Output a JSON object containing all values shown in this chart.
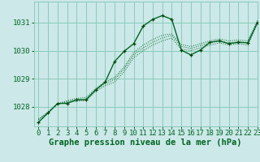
{
  "title": "Graphe pression niveau de la mer (hPa)",
  "background_color": "#cce8e8",
  "plot_bg_color": "#cce8e8",
  "grid_color": "#88ccbb",
  "line_color": "#006622",
  "marker_color": "#004400",
  "xlim": [
    -0.5,
    23
  ],
  "ylim": [
    1027.3,
    1031.75
  ],
  "xticks": [
    0,
    1,
    2,
    3,
    4,
    5,
    6,
    7,
    8,
    9,
    10,
    11,
    12,
    13,
    14,
    15,
    16,
    17,
    18,
    19,
    20,
    21,
    22,
    23
  ],
  "yticks": [
    1028,
    1029,
    1030,
    1031
  ],
  "series_dotted": [
    [
      1027.55,
      1027.8,
      1028.1,
      1028.15,
      1028.2,
      1028.22,
      1028.55,
      1028.75,
      1028.88,
      1029.25,
      1029.75,
      1030.0,
      1030.2,
      1030.35,
      1030.45,
      1030.05,
      1030.0,
      1030.1,
      1030.2,
      1030.28,
      1030.2,
      1030.25,
      1030.2,
      1030.95
    ],
    [
      1027.55,
      1027.8,
      1028.1,
      1028.18,
      1028.25,
      1028.28,
      1028.6,
      1028.82,
      1028.98,
      1029.35,
      1029.85,
      1030.1,
      1030.3,
      1030.45,
      1030.55,
      1030.15,
      1030.08,
      1030.18,
      1030.28,
      1030.35,
      1030.28,
      1030.32,
      1030.28,
      1031.02
    ],
    [
      1027.55,
      1027.8,
      1028.1,
      1028.22,
      1028.3,
      1028.33,
      1028.65,
      1028.88,
      1029.05,
      1029.42,
      1029.93,
      1030.2,
      1030.4,
      1030.55,
      1030.6,
      1030.22,
      1030.15,
      1030.25,
      1030.35,
      1030.42,
      1030.35,
      1030.38,
      1030.35,
      1031.08
    ]
  ],
  "series_main": [
    1027.45,
    1027.78,
    1028.12,
    1028.12,
    1028.25,
    1028.25,
    1028.6,
    1028.88,
    1029.62,
    1029.98,
    1030.25,
    1030.88,
    1031.12,
    1031.25,
    1031.12,
    1030.02,
    1029.85,
    1030.02,
    1030.3,
    1030.35,
    1030.25,
    1030.3,
    1030.28,
    1031.0
  ],
  "fontsize_title": 7.5,
  "fontsize_ticks": 6.5
}
